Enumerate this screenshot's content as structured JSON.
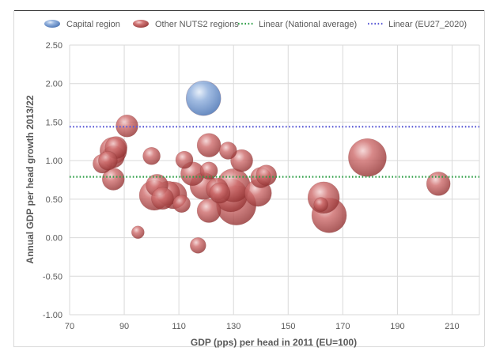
{
  "chart_data": {
    "type": "scatter",
    "title": "",
    "xlabel": "GDP (pps) per head in 2011 (EU=100)",
    "ylabel": "Annual GDP per head growth 2013/22",
    "xlim": [
      70,
      220
    ],
    "ylim": [
      -1.0,
      2.5
    ],
    "xticks": [
      "70",
      "90",
      "110",
      "130",
      "150",
      "170",
      "190",
      "210"
    ],
    "yticks": [
      "-1.00",
      "-0.50",
      "0.00",
      "0.50",
      "1.00",
      "1.50",
      "2.00",
      "2.50"
    ],
    "grid": true,
    "legend_position": "top",
    "legend": [
      "Capital region",
      "Other NUTS2 regions",
      "Linear (National average)",
      "Linear (EU27_2020)"
    ],
    "reference_lines": [
      {
        "name": "Linear (National average)",
        "y": 0.79,
        "color": "#2e9e47",
        "style": "dotted"
      },
      {
        "name": "Linear (EU27_2020)",
        "y": 1.44,
        "color": "#5b5bd6",
        "style": "dotted"
      }
    ],
    "series": [
      {
        "name": "Capital region",
        "color": "#6f95cf",
        "points": [
          {
            "x": 119,
            "y": 1.81,
            "size": 22
          }
        ]
      },
      {
        "name": "Other NUTS2 regions",
        "color": "#c85656",
        "points": [
          {
            "x": 82,
            "y": 0.96,
            "size": 12
          },
          {
            "x": 84,
            "y": 1.0,
            "size": 12
          },
          {
            "x": 86,
            "y": 1.05,
            "size": 14
          },
          {
            "x": 86,
            "y": 1.13,
            "size": 17
          },
          {
            "x": 87,
            "y": 1.17,
            "size": 14
          },
          {
            "x": 86,
            "y": 0.76,
            "size": 14
          },
          {
            "x": 91,
            "y": 1.45,
            "size": 14
          },
          {
            "x": 95,
            "y": 0.07,
            "size": 8
          },
          {
            "x": 100,
            "y": 1.06,
            "size": 11
          },
          {
            "x": 102,
            "y": 0.68,
            "size": 14
          },
          {
            "x": 101,
            "y": 0.55,
            "size": 19
          },
          {
            "x": 104,
            "y": 0.51,
            "size": 14
          },
          {
            "x": 106,
            "y": 0.58,
            "size": 15
          },
          {
            "x": 108,
            "y": 0.55,
            "size": 17
          },
          {
            "x": 111,
            "y": 0.44,
            "size": 11
          },
          {
            "x": 112,
            "y": 1.01,
            "size": 11
          },
          {
            "x": 115,
            "y": 0.83,
            "size": 15
          },
          {
            "x": 117,
            "y": -0.1,
            "size": 10
          },
          {
            "x": 119,
            "y": 0.67,
            "size": 17
          },
          {
            "x": 121,
            "y": 1.2,
            "size": 15
          },
          {
            "x": 121,
            "y": 0.87,
            "size": 11
          },
          {
            "x": 121,
            "y": 0.35,
            "size": 15
          },
          {
            "x": 124,
            "y": 0.63,
            "size": 14
          },
          {
            "x": 125,
            "y": 0.58,
            "size": 13
          },
          {
            "x": 128,
            "y": 1.13,
            "size": 11
          },
          {
            "x": 129,
            "y": 0.55,
            "size": 21
          },
          {
            "x": 130,
            "y": 0.68,
            "size": 21
          },
          {
            "x": 131,
            "y": 0.42,
            "size": 25
          },
          {
            "x": 133,
            "y": 1.0,
            "size": 14
          },
          {
            "x": 139,
            "y": 0.58,
            "size": 17
          },
          {
            "x": 140,
            "y": 0.78,
            "size": 13
          },
          {
            "x": 142,
            "y": 0.81,
            "size": 13
          },
          {
            "x": 162,
            "y": 0.43,
            "size": 9
          },
          {
            "x": 163,
            "y": 0.52,
            "size": 20
          },
          {
            "x": 165,
            "y": 0.29,
            "size": 22
          },
          {
            "x": 179,
            "y": 1.04,
            "size": 24
          },
          {
            "x": 205,
            "y": 0.7,
            "size": 15
          }
        ]
      }
    ]
  }
}
